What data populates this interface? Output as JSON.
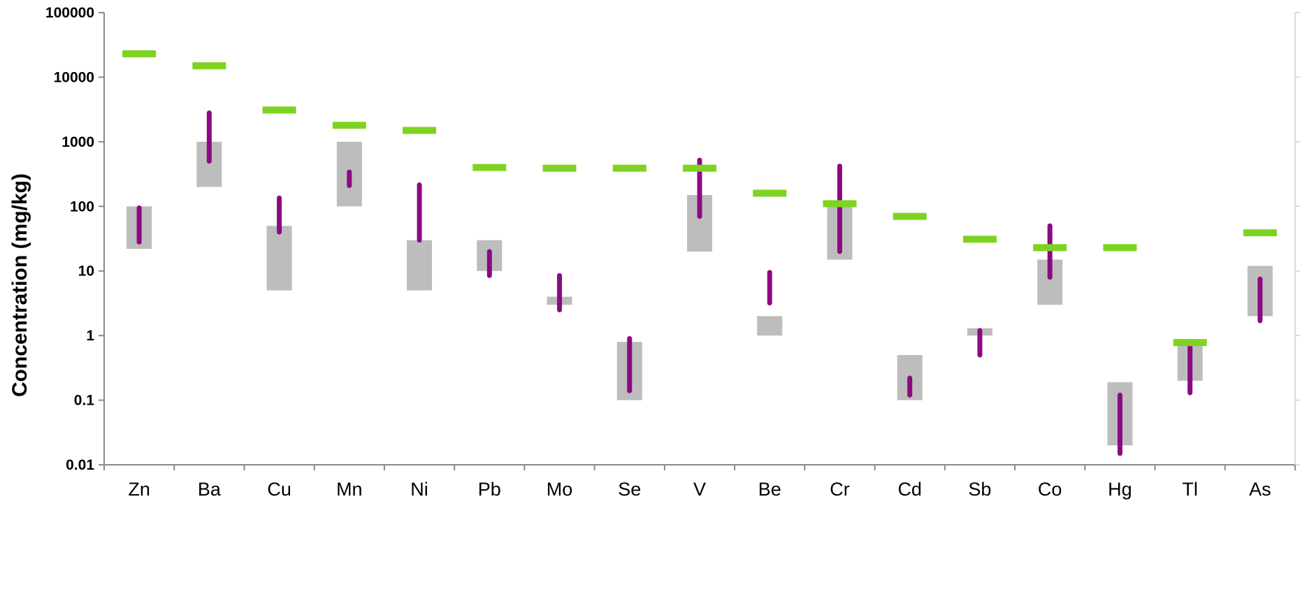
{
  "chart_data": {
    "type": "range",
    "ylabel": "Concentration (mg/kg)",
    "yscale": "log",
    "ylim": [
      0.01,
      100000
    ],
    "y_ticks": [
      "100000",
      "10000",
      "1000",
      "100",
      "10",
      "1",
      "0.1",
      "0.01"
    ],
    "y_tick_values": [
      100000,
      10000,
      1000,
      100,
      10,
      1,
      0.1,
      0.01
    ],
    "grid": false,
    "categories": [
      "Zn",
      "Ba",
      "Cu",
      "Mn",
      "Ni",
      "Pb",
      "Mo",
      "Se",
      "V",
      "Be",
      "Cr",
      "Cd",
      "Sb",
      "Co",
      "Hg",
      "Tl",
      "As"
    ],
    "series": [
      {
        "kind": "gray-range",
        "low": [
          22,
          200,
          5,
          100,
          5,
          10,
          3,
          0.1,
          20,
          1,
          15,
          0.1,
          1,
          3,
          0.02,
          0.2,
          2
        ],
        "high": [
          100,
          1000,
          50,
          1000,
          30,
          30,
          4,
          0.8,
          150,
          2,
          100,
          0.5,
          1.3,
          15,
          0.19,
          0.8,
          12
        ]
      },
      {
        "kind": "purple-range",
        "low": [
          28,
          500,
          40,
          210,
          30,
          8.5,
          2.5,
          0.14,
          70,
          3.2,
          20,
          0.12,
          0.5,
          8,
          0.015,
          0.13,
          1.7
        ],
        "high": [
          95,
          2800,
          135,
          340,
          215,
          20,
          8.5,
          0.9,
          520,
          9.5,
          420,
          0.22,
          1.2,
          50,
          0.12,
          0.7,
          7.5
        ]
      },
      {
        "kind": "green-marker",
        "values": [
          23000,
          15000,
          3100,
          1800,
          1500,
          400,
          390,
          390,
          390,
          160,
          110,
          70,
          31,
          23,
          23,
          0.78,
          39
        ]
      }
    ],
    "colors": {
      "gray_range": "#bdbdbd",
      "purple_range": "#8b0a82",
      "green_marker": "#7ed321",
      "axis": "#8a8a8a"
    }
  }
}
